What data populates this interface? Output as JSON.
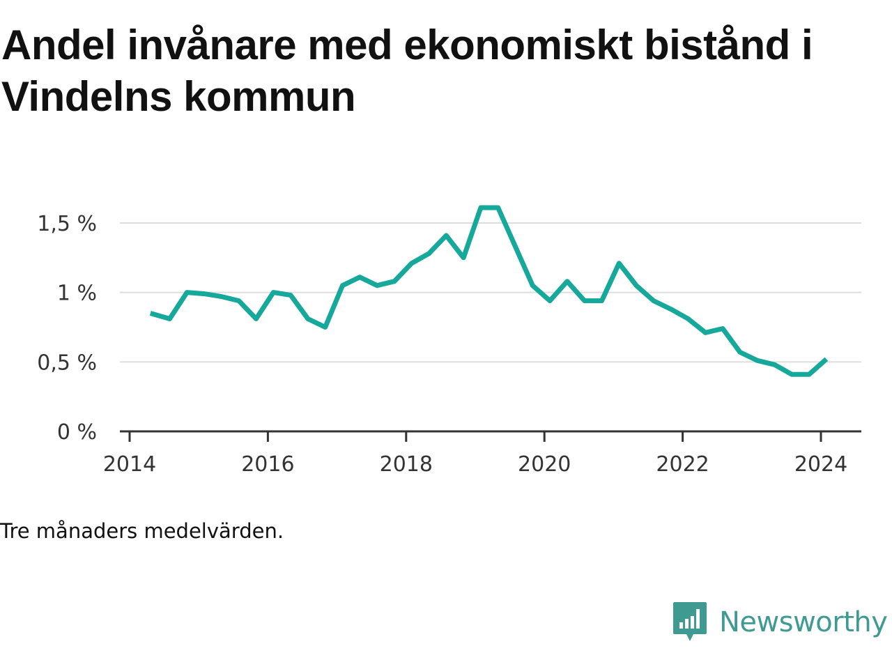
{
  "title": "Andel invånare med ekonomiskt bistånd i Vindelns kommun",
  "note": "Tre månaders medelvärden.",
  "brand": {
    "name": "Newsworthy",
    "icon": "newsworthy-logo-icon",
    "color": "#3f9a92"
  },
  "chart_data": {
    "type": "line",
    "title": "Andel invånare med ekonomiskt bistånd i Vindelns kommun",
    "xlabel": "",
    "ylabel": "",
    "xlim": [
      2014,
      2024.6
    ],
    "ylim": [
      0,
      1.6
    ],
    "x_ticks": [
      {
        "value": 2014,
        "label": "2014"
      },
      {
        "value": 2016,
        "label": "2016"
      },
      {
        "value": 2018,
        "label": "2018"
      },
      {
        "value": 2020,
        "label": "2020"
      },
      {
        "value": 2022,
        "label": "2022"
      },
      {
        "value": 2024,
        "label": "2024"
      }
    ],
    "y_ticks": [
      {
        "value": 0,
        "label": "0 %"
      },
      {
        "value": 0.5,
        "label": "0,5 %"
      },
      {
        "value": 1,
        "label": "1 %"
      },
      {
        "value": 1.5,
        "label": "1,5 %"
      }
    ],
    "grid": true,
    "line_color": "#15a89b",
    "series": [
      {
        "x": [
          2014.3,
          2014.58,
          2014.83,
          2015.08,
          2015.33,
          2015.58,
          2015.83,
          2016.08,
          2016.33,
          2016.58,
          2016.83,
          2017.08,
          2017.33,
          2017.58,
          2017.83,
          2018.08,
          2018.33,
          2018.58,
          2018.83,
          2019.08,
          2019.33,
          2019.58,
          2019.83,
          2020.08,
          2020.33,
          2020.58,
          2020.83,
          2021.08,
          2021.33,
          2021.58,
          2021.83,
          2022.08,
          2022.33,
          2022.58,
          2022.83,
          2023.08,
          2023.33,
          2023.58,
          2023.83,
          2024.08
        ],
        "values": [
          0.85,
          0.81,
          1.0,
          0.99,
          0.97,
          0.94,
          0.81,
          1.0,
          0.98,
          0.81,
          0.75,
          1.05,
          1.11,
          1.05,
          1.08,
          1.21,
          1.28,
          1.41,
          1.25,
          1.61,
          1.61,
          1.33,
          1.05,
          0.94,
          1.08,
          0.94,
          0.94,
          1.21,
          1.05,
          0.94,
          0.88,
          0.81,
          0.71,
          0.74,
          0.57,
          0.51,
          0.48,
          0.41,
          0.41,
          0.52
        ]
      }
    ]
  }
}
